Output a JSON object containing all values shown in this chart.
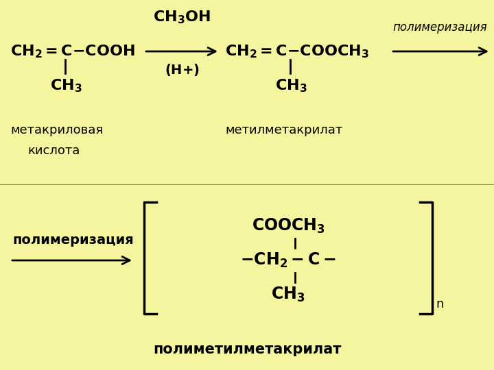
{
  "bg_yellow": "#f5f5a0",
  "bg_border": "#c8c800",
  "text_color": "#000000",
  "top": {
    "reactant_label1": "метакриловая",
    "reactant_label2": "кислота",
    "reagent_above": "CH₃OH",
    "reagent_below": "(H+)",
    "product_label": "метилметакрилат",
    "poly_label": "полимеризация"
  },
  "bottom": {
    "poly_label": "полимеризация",
    "n_label": "n",
    "final_label": "полиметилметакрилат"
  },
  "figw": 7.2,
  "figh": 5.4,
  "dpi": 100
}
